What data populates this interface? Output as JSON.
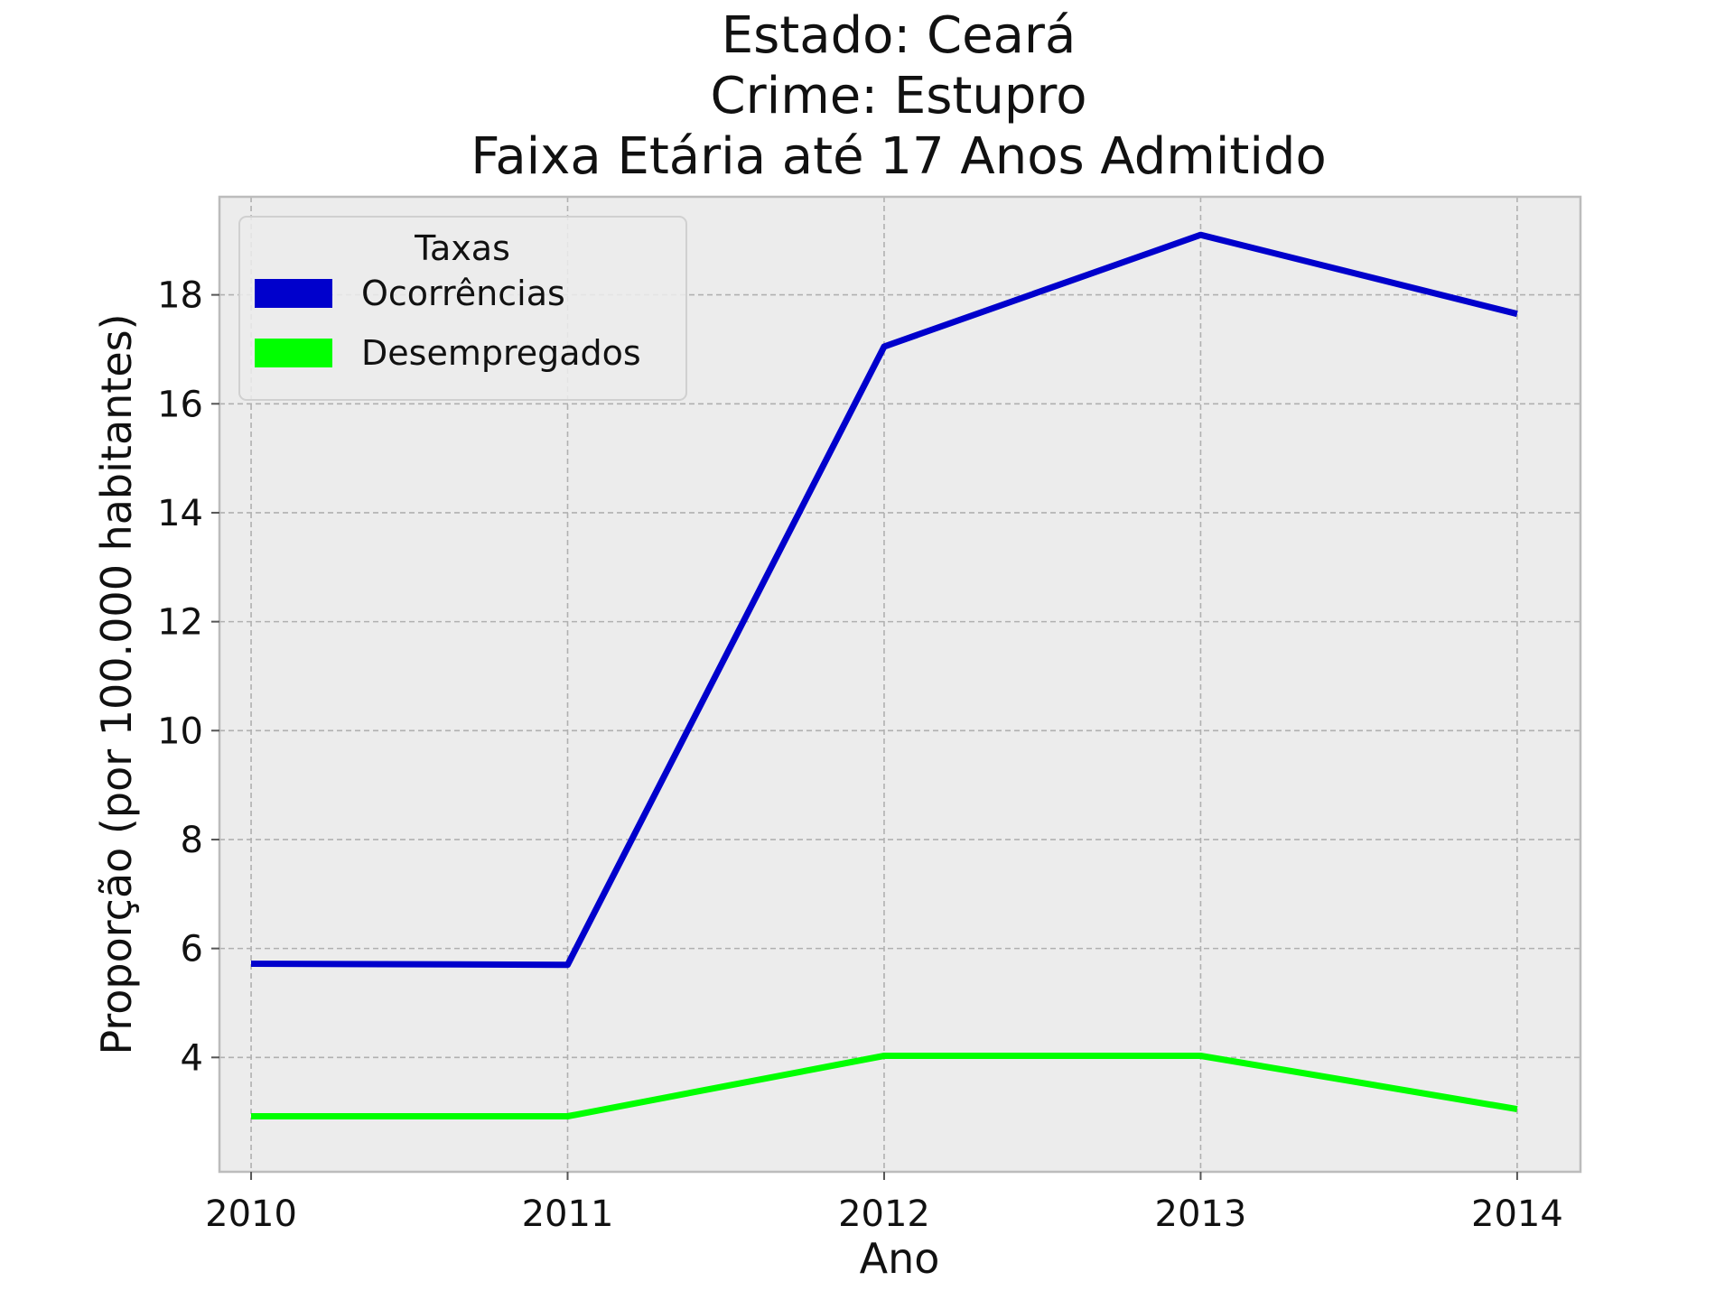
{
  "chart_data": {
    "type": "line",
    "title_lines": [
      "Estado: Ceará",
      "Crime: Estupro",
      "Faixa Etária até 17 Anos   Admitido"
    ],
    "xlabel": "Ano",
    "ylabel": "Proporção (por 100.000 habitantes)",
    "x": [
      2010,
      2011,
      2012,
      2013,
      2014
    ],
    "x_tick_labels": [
      "2010",
      "2011",
      "2012",
      "2013",
      "2014"
    ],
    "y_ticks": [
      4,
      6,
      8,
      10,
      12,
      14,
      16,
      18
    ],
    "y_tick_labels": [
      "4",
      "6",
      "8",
      "10",
      "12",
      "14",
      "16",
      "18"
    ],
    "xlim": [
      2009.9,
      2014.2
    ],
    "ylim": [
      1.9,
      19.8
    ],
    "grid": true,
    "legend": {
      "title": "Taxas",
      "placement": "top-left"
    },
    "series": [
      {
        "name": "Ocorrências",
        "color": "#0000cc",
        "values": [
          5.72,
          5.7,
          17.05,
          19.1,
          17.65
        ]
      },
      {
        "name": "Desempregados",
        "color": "#00ff00",
        "values": [
          2.92,
          2.92,
          4.03,
          4.03,
          3.05
        ]
      }
    ],
    "background": "#ececec"
  }
}
